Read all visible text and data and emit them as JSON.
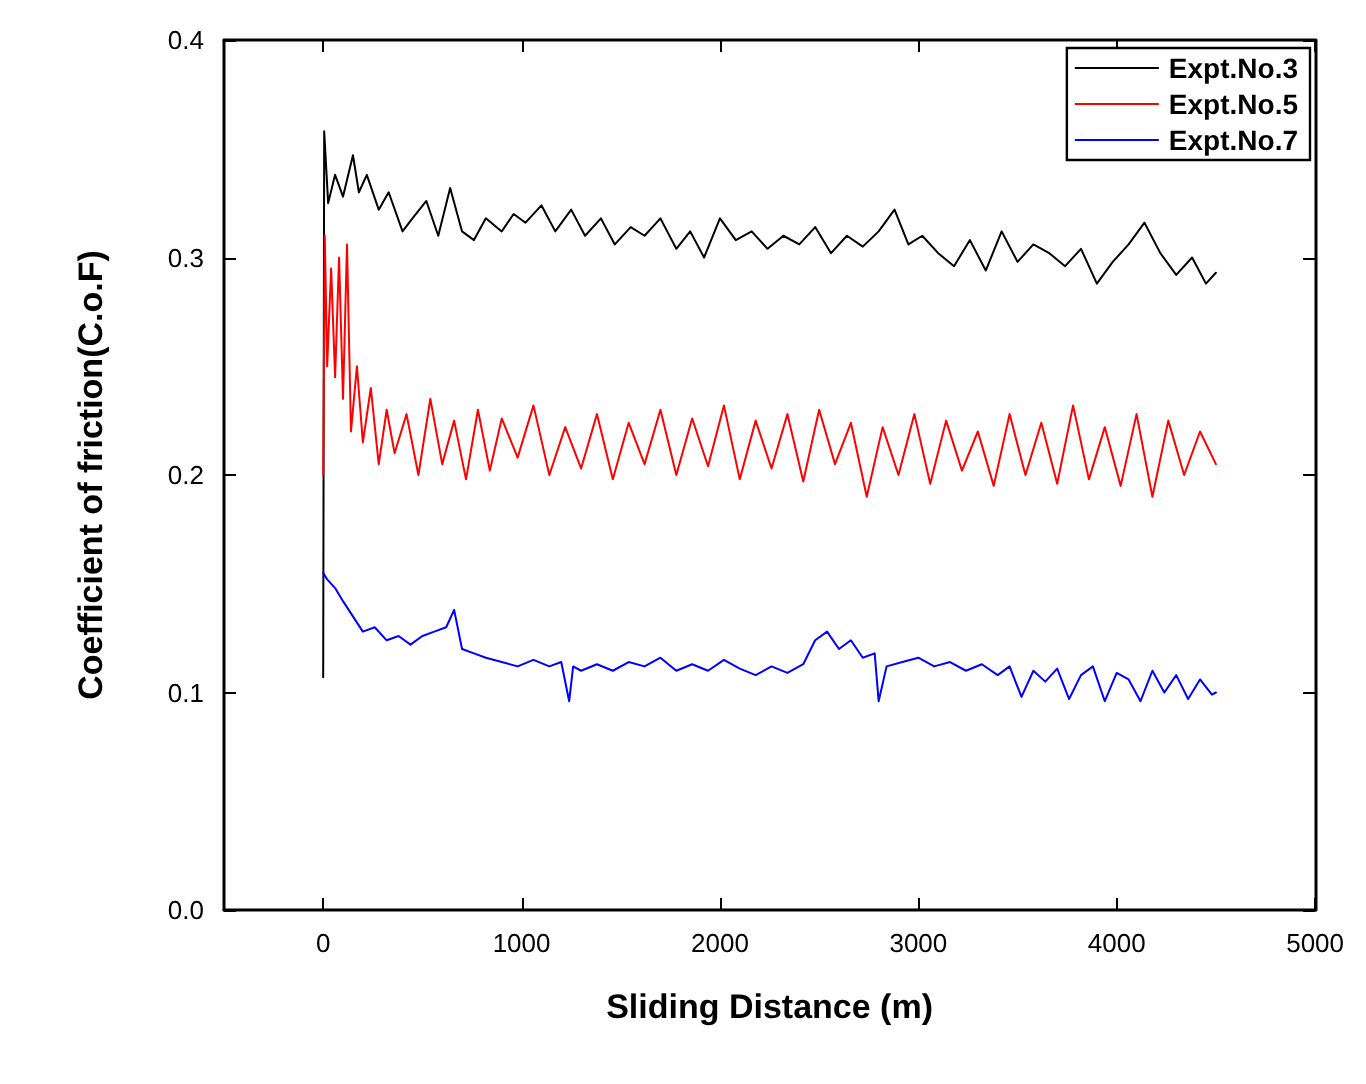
{
  "chart_data": {
    "type": "line",
    "xlabel": "Sliding Distance (m)",
    "ylabel": "Coefficient of friction(C.o.F)",
    "xlim": [
      -500,
      5000
    ],
    "ylim": [
      0,
      0.4
    ],
    "xticks": [
      0,
      1000,
      2000,
      3000,
      4000,
      5000
    ],
    "yticks": [
      {
        "value": 0,
        "label": "0.0"
      },
      0.1,
      0.2,
      0.3,
      0.4
    ],
    "grid": false,
    "legend": "top right",
    "marker": "none",
    "line_style": "solid",
    "series": [
      {
        "name": "Expt.No.3",
        "color": "#000000",
        "x": [
          0,
          5,
          25,
          60,
          100,
          150,
          180,
          220,
          280,
          330,
          400,
          450,
          520,
          580,
          640,
          700,
          760,
          820,
          900,
          960,
          1020,
          1100,
          1170,
          1250,
          1320,
          1400,
          1470,
          1550,
          1620,
          1700,
          1780,
          1850,
          1920,
          2000,
          2080,
          2160,
          2240,
          2320,
          2400,
          2480,
          2560,
          2640,
          2720,
          2800,
          2880,
          2950,
          3020,
          3100,
          3180,
          3260,
          3340,
          3420,
          3500,
          3580,
          3660,
          3740,
          3820,
          3900,
          3980,
          4060,
          4140,
          4220,
          4300,
          4380,
          4450,
          4500
        ],
        "values": [
          0.107,
          0.358,
          0.325,
          0.338,
          0.328,
          0.347,
          0.33,
          0.338,
          0.322,
          0.33,
          0.312,
          0.318,
          0.326,
          0.31,
          0.332,
          0.312,
          0.308,
          0.318,
          0.312,
          0.32,
          0.316,
          0.324,
          0.312,
          0.322,
          0.31,
          0.318,
          0.306,
          0.314,
          0.31,
          0.318,
          0.304,
          0.312,
          0.3,
          0.318,
          0.308,
          0.312,
          0.304,
          0.31,
          0.306,
          0.314,
          0.302,
          0.31,
          0.305,
          0.312,
          0.322,
          0.306,
          0.31,
          0.302,
          0.296,
          0.308,
          0.294,
          0.312,
          0.298,
          0.306,
          0.302,
          0.296,
          0.304,
          0.288,
          0.298,
          0.306,
          0.316,
          0.302,
          0.292,
          0.3,
          0.288,
          0.293
        ]
      },
      {
        "name": "Expt.No.5",
        "color": "#ff0000",
        "x": [
          0,
          8,
          20,
          40,
          60,
          80,
          100,
          120,
          140,
          170,
          200,
          240,
          280,
          320,
          360,
          420,
          480,
          540,
          600,
          660,
          720,
          780,
          840,
          900,
          980,
          1060,
          1140,
          1220,
          1300,
          1380,
          1460,
          1540,
          1620,
          1700,
          1780,
          1860,
          1940,
          2020,
          2100,
          2180,
          2260,
          2340,
          2420,
          2500,
          2580,
          2660,
          2740,
          2820,
          2900,
          2980,
          3060,
          3140,
          3220,
          3300,
          3380,
          3460,
          3540,
          3620,
          3700,
          3780,
          3860,
          3940,
          4020,
          4100,
          4180,
          4260,
          4340,
          4420,
          4500
        ],
        "values": [
          0.2,
          0.31,
          0.25,
          0.295,
          0.245,
          0.3,
          0.235,
          0.306,
          0.22,
          0.25,
          0.215,
          0.24,
          0.205,
          0.23,
          0.21,
          0.228,
          0.2,
          0.235,
          0.205,
          0.225,
          0.198,
          0.23,
          0.202,
          0.226,
          0.208,
          0.232,
          0.2,
          0.222,
          0.203,
          0.228,
          0.198,
          0.224,
          0.205,
          0.23,
          0.2,
          0.226,
          0.204,
          0.232,
          0.198,
          0.225,
          0.203,
          0.228,
          0.197,
          0.23,
          0.205,
          0.224,
          0.19,
          0.222,
          0.2,
          0.228,
          0.196,
          0.225,
          0.202,
          0.22,
          0.195,
          0.228,
          0.2,
          0.224,
          0.196,
          0.232,
          0.198,
          0.222,
          0.195,
          0.228,
          0.19,
          0.225,
          0.2,
          0.22,
          0.205
        ]
      },
      {
        "name": "Expt.No.7",
        "color": "#0000ff",
        "x": [
          0,
          20,
          60,
          100,
          150,
          200,
          260,
          320,
          380,
          440,
          500,
          560,
          620,
          660,
          700,
          760,
          820,
          900,
          980,
          1060,
          1140,
          1200,
          1240,
          1260,
          1300,
          1380,
          1460,
          1540,
          1620,
          1700,
          1780,
          1860,
          1940,
          2020,
          2100,
          2180,
          2260,
          2340,
          2420,
          2480,
          2540,
          2600,
          2660,
          2720,
          2780,
          2800,
          2840,
          2920,
          3000,
          3080,
          3160,
          3240,
          3320,
          3400,
          3460,
          3520,
          3580,
          3640,
          3700,
          3760,
          3820,
          3880,
          3940,
          4000,
          4060,
          4120,
          4180,
          4240,
          4300,
          4360,
          4420,
          4480,
          4500
        ],
        "values": [
          0.155,
          0.152,
          0.148,
          0.142,
          0.135,
          0.128,
          0.13,
          0.124,
          0.126,
          0.122,
          0.126,
          0.128,
          0.13,
          0.138,
          0.12,
          0.118,
          0.116,
          0.114,
          0.112,
          0.115,
          0.112,
          0.114,
          0.096,
          0.112,
          0.11,
          0.113,
          0.11,
          0.114,
          0.112,
          0.116,
          0.11,
          0.113,
          0.11,
          0.115,
          0.111,
          0.108,
          0.112,
          0.109,
          0.113,
          0.124,
          0.128,
          0.12,
          0.124,
          0.116,
          0.118,
          0.096,
          0.112,
          0.114,
          0.116,
          0.112,
          0.114,
          0.11,
          0.113,
          0.108,
          0.112,
          0.098,
          0.11,
          0.105,
          0.111,
          0.097,
          0.108,
          0.112,
          0.096,
          0.109,
          0.106,
          0.096,
          0.11,
          0.1,
          0.108,
          0.097,
          0.106,
          0.099,
          0.1
        ]
      }
    ]
  }
}
